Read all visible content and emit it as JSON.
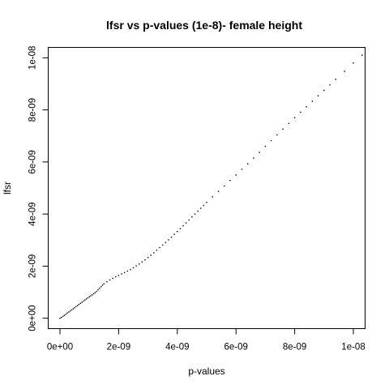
{
  "chart_data": {
    "type": "scatter",
    "title": "lfsr vs p-values (1e-8)- female height",
    "xlabel": "p-values",
    "ylabel": "lfsr",
    "xlim": [
      -4e-10,
      1.04e-08
    ],
    "ylim": [
      -4e-10,
      1.04e-08
    ],
    "xticks": [
      {
        "value": 0,
        "label": "0e+00"
      },
      {
        "value": 2e-09,
        "label": "2e-09"
      },
      {
        "value": 4e-09,
        "label": "4e-09"
      },
      {
        "value": 6e-09,
        "label": "6e-09"
      },
      {
        "value": 8e-09,
        "label": "8e-09"
      },
      {
        "value": 1e-08,
        "label": "1e-08"
      }
    ],
    "yticks": [
      {
        "value": 0,
        "label": "0e+00"
      },
      {
        "value": 2e-09,
        "label": "2e-09"
      },
      {
        "value": 4e-09,
        "label": "4e-09"
      },
      {
        "value": 6e-09,
        "label": "6e-09"
      },
      {
        "value": 8e-09,
        "label": "8e-09"
      },
      {
        "value": 1e-08,
        "label": "1e-08"
      }
    ],
    "grid": false,
    "point_color": "#000000",
    "points": {
      "x": [
        0,
        5e-11,
        1e-10,
        1.5e-10,
        2e-10,
        2.5e-10,
        3e-10,
        3.5e-10,
        4e-10,
        4.5e-10,
        5e-10,
        5.5e-10,
        6e-10,
        6.5e-10,
        7e-10,
        7.5e-10,
        8e-10,
        8.5e-10,
        9e-10,
        9.5e-10,
        1e-09,
        1.05e-09,
        1.1e-09,
        1.15e-09,
        1.2e-09,
        1.25e-09,
        1.3e-09,
        1.35e-09,
        1.4e-09,
        1.45e-09,
        1.5e-09,
        1.6e-09,
        1.7e-09,
        1.8e-09,
        1.9e-09,
        2e-09,
        2.1e-09,
        2.2e-09,
        2.3e-09,
        2.4e-09,
        2.5e-09,
        2.6e-09,
        2.7e-09,
        2.8e-09,
        2.9e-09,
        3e-09,
        3.1e-09,
        3.2e-09,
        3.3e-09,
        3.4e-09,
        3.5e-09,
        3.6e-09,
        3.7e-09,
        3.8e-09,
        3.9e-09,
        4e-09,
        4.1e-09,
        4.2e-09,
        4.3e-09,
        4.4e-09,
        4.5e-09,
        4.6e-09,
        4.7e-09,
        4.8e-09,
        4.9e-09,
        5e-09,
        5.2e-09,
        5.4e-09,
        5.6e-09,
        5.8e-09,
        6e-09,
        6.2e-09,
        6.4e-09,
        6.6e-09,
        6.8e-09,
        7e-09,
        7.2e-09,
        7.4e-09,
        7.6e-09,
        7.8e-09,
        8e-09,
        8.2e-09,
        8.4e-09,
        8.6e-09,
        8.8e-09,
        9e-09,
        9.2e-09,
        9.4e-09,
        9.7e-09,
        1e-08,
        1.03e-08
      ],
      "y": [
        0,
        3e-11,
        7e-11,
        1.1e-10,
        1.5e-10,
        2e-10,
        2.4e-10,
        2.8e-10,
        3.2e-10,
        3.6e-10,
        4e-10,
        4.5e-10,
        4.9e-10,
        5.3e-10,
        5.7e-10,
        6.1e-10,
        6.6e-10,
        7e-10,
        7.4e-10,
        7.8e-10,
        8.2e-10,
        8.6e-10,
        9e-10,
        9.4e-10,
        9.8e-10,
        1.03e-09,
        1.09e-09,
        1.15e-09,
        1.21e-09,
        1.27e-09,
        1.32e-09,
        1.4e-09,
        1.47e-09,
        1.53e-09,
        1.59e-09,
        1.64e-09,
        1.7e-09,
        1.75e-09,
        1.81e-09,
        1.87e-09,
        1.94e-09,
        2.01e-09,
        2.08e-09,
        2.16e-09,
        2.24e-09,
        2.33e-09,
        2.42e-09,
        2.51e-09,
        2.61e-09,
        2.71e-09,
        2.81e-09,
        2.91e-09,
        3.01e-09,
        3.11e-09,
        3.22e-09,
        3.33e-09,
        3.44e-09,
        3.55e-09,
        3.66e-09,
        3.77e-09,
        3.89e-09,
        4e-09,
        4.11e-09,
        4.22e-09,
        4.33e-09,
        4.45e-09,
        4.66e-09,
        4.87e-09,
        5.08e-09,
        5.29e-09,
        5.5e-09,
        5.72e-09,
        5.93e-09,
        6.15e-09,
        6.37e-09,
        6.6e-09,
        6.82e-09,
        7.04e-09,
        7.26e-09,
        7.48e-09,
        7.7e-09,
        7.91e-09,
        8.12e-09,
        8.33e-09,
        8.54e-09,
        8.75e-09,
        8.96e-09,
        9.17e-09,
        9.48e-09,
        9.8e-09,
        1.01e-08
      ]
    }
  }
}
